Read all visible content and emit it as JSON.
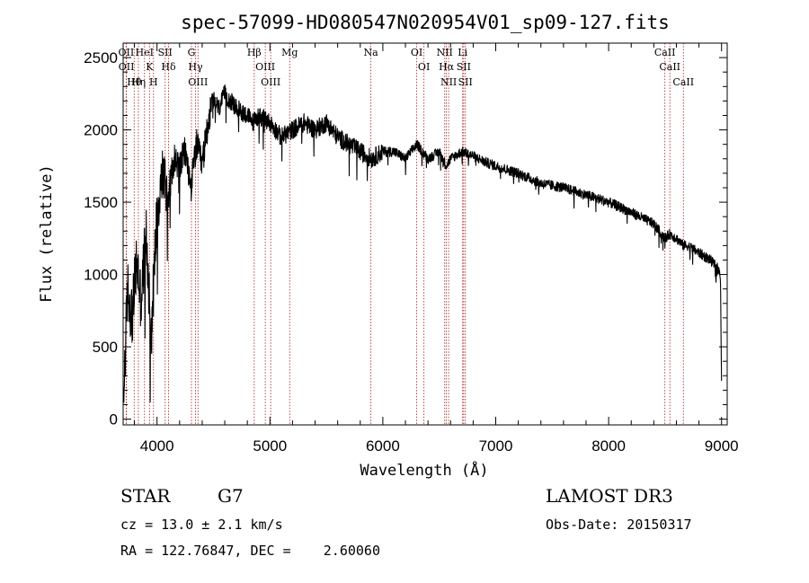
{
  "chart_data": {
    "type": "line",
    "title": "spec-57099-HD080547N020954V01_sp09-127.fits",
    "xlabel": "Wavelength (Å)",
    "ylabel": "Flux (relative)",
    "xlim": [
      3700,
      9050
    ],
    "ylim": [
      -40,
      2600
    ],
    "xticks": [
      4000,
      5000,
      6000,
      7000,
      8000,
      9000
    ],
    "yticks": [
      0,
      500,
      1000,
      1500,
      2000,
      2500
    ],
    "grid": false,
    "spectrum_anchor_points": {
      "x": [
        3700,
        3740,
        3780,
        3820,
        3860,
        3900,
        3950,
        4000,
        4050,
        4100,
        4150,
        4200,
        4250,
        4300,
        4350,
        4400,
        4450,
        4500,
        4550,
        4600,
        4700,
        4800,
        4850,
        4900,
        5000,
        5100,
        5200,
        5300,
        5400,
        5500,
        5600,
        5700,
        5800,
        5900,
        6000,
        6100,
        6200,
        6300,
        6400,
        6500,
        6563,
        6600,
        6700,
        6800,
        6900,
        7000,
        7200,
        7400,
        7600,
        7800,
        8000,
        8200,
        8400,
        8498,
        8542,
        8600,
        8662,
        8700,
        8800,
        8900,
        8960,
        8990,
        9000
      ],
      "y": [
        80,
        900,
        700,
        1100,
        800,
        1300,
        600,
        1450,
        1700,
        1550,
        1800,
        1750,
        1850,
        1600,
        1900,
        1750,
        2050,
        2200,
        2150,
        2250,
        2150,
        2100,
        2050,
        2100,
        2050,
        1950,
        2000,
        2050,
        2000,
        2050,
        1950,
        1900,
        1850,
        1800,
        1850,
        1850,
        1800,
        1900,
        1800,
        1850,
        1750,
        1800,
        1850,
        1820,
        1780,
        1750,
        1700,
        1630,
        1600,
        1550,
        1500,
        1430,
        1350,
        1250,
        1280,
        1250,
        1200,
        1200,
        1150,
        1100,
        1050,
        1000,
        250
      ]
    },
    "spectral_lines": [
      {
        "name": "Hθ",
        "wavelength": 3798
      },
      {
        "name": "OII",
        "wavelength": 3727
      },
      {
        "name": "OII",
        "wavelength": 3729
      },
      {
        "name": "Hη",
        "wavelength": 3835
      },
      {
        "name": "HeI",
        "wavelength": 3889
      },
      {
        "name": "K",
        "wavelength": 3934
      },
      {
        "name": "H",
        "wavelength": 3969
      },
      {
        "name": "SII",
        "wavelength": 4072
      },
      {
        "name": "Hδ",
        "wavelength": 4102
      },
      {
        "name": "G",
        "wavelength": 4305
      },
      {
        "name": "Hγ",
        "wavelength": 4341
      },
      {
        "name": "OIII",
        "wavelength": 4363
      },
      {
        "name": "Hβ",
        "wavelength": 4861
      },
      {
        "name": "OIII",
        "wavelength": 4959
      },
      {
        "name": "OIII",
        "wavelength": 5007
      },
      {
        "name": "Mg",
        "wavelength": 5175
      },
      {
        "name": "Na",
        "wavelength": 5894
      },
      {
        "name": "OI",
        "wavelength": 6300
      },
      {
        "name": "OI",
        "wavelength": 6364
      },
      {
        "name": "NII",
        "wavelength": 6548
      },
      {
        "name": "Hα",
        "wavelength": 6563
      },
      {
        "name": "NII",
        "wavelength": 6583
      },
      {
        "name": "Li",
        "wavelength": 6707
      },
      {
        "name": "SII",
        "wavelength": 6716
      },
      {
        "name": "SII",
        "wavelength": 6731
      },
      {
        "name": "CaII",
        "wavelength": 8498
      },
      {
        "name": "CaII",
        "wavelength": 8542
      },
      {
        "name": "CaII",
        "wavelength": 8662
      }
    ],
    "colors": {
      "spectrum": "#000000",
      "lines": "#b03030",
      "axes": "#000000"
    }
  },
  "info": {
    "object_class": "STAR",
    "subclass": "G7",
    "survey": "LAMOST DR3",
    "redshift_text": "cz = 13.0 ± 2.1 km/s",
    "obs_date_text": "Obs-Date: 20150317",
    "coords_text": "RA = 122.76847, DEC =    2.60060"
  }
}
